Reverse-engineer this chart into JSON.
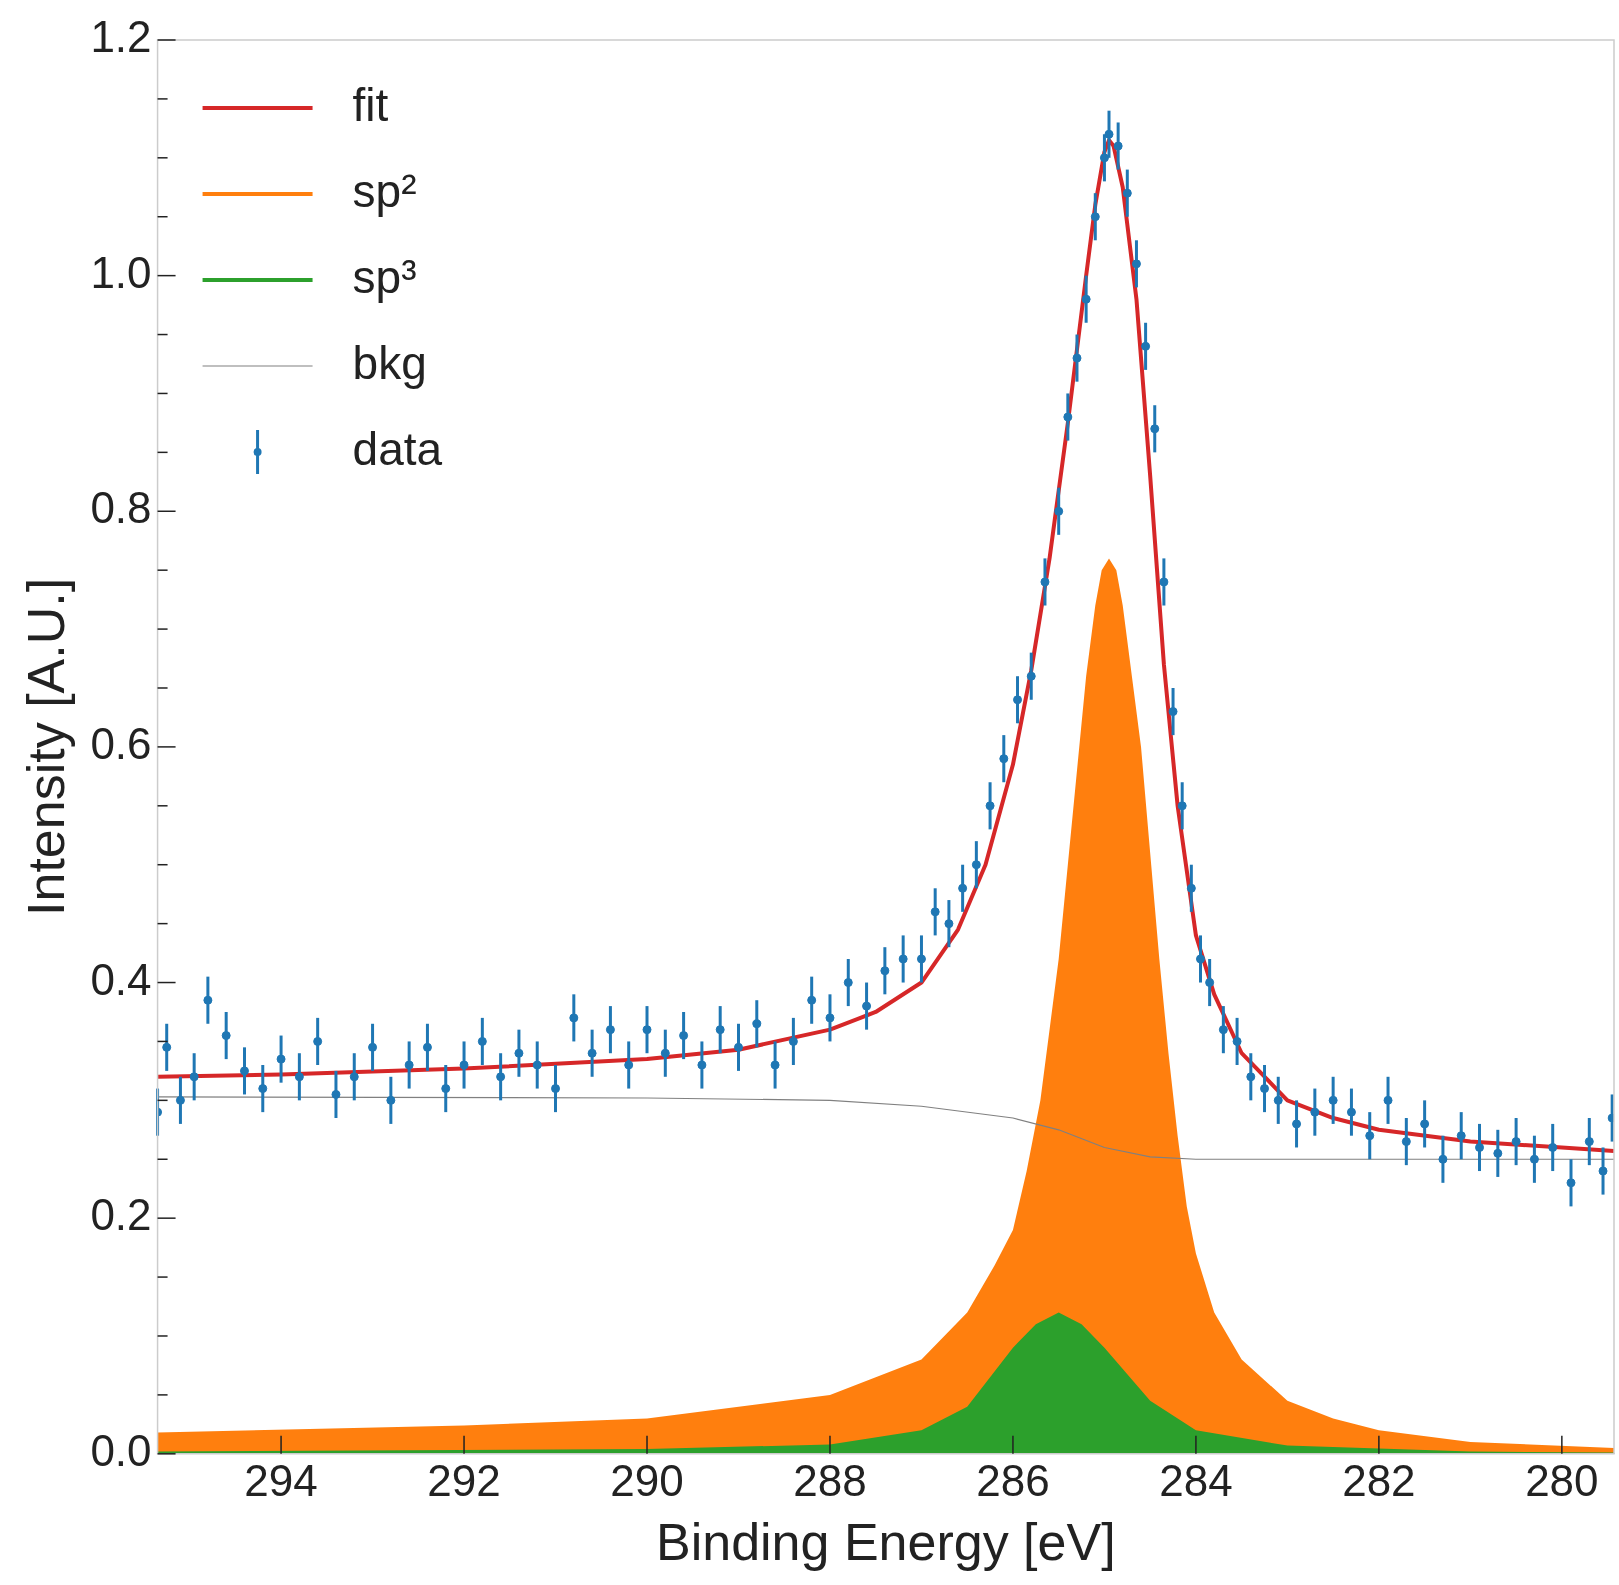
{
  "chart_data": {
    "type": "line",
    "xlabel": "Binding Energy [eV]",
    "ylabel": "Intensity [A.U.]",
    "xlim": [
      295.35,
      279.43
    ],
    "xticks": [
      294,
      292,
      290,
      288,
      286,
      284,
      282,
      280
    ],
    "ylim": [
      0,
      1.2
    ],
    "yticks": [
      {
        "value": 0,
        "label": "0.0"
      },
      {
        "value": 0.05,
        "label": null
      },
      {
        "value": 0.1,
        "label": null
      },
      {
        "value": 0.15,
        "label": null
      },
      0.2,
      {
        "value": 0.25,
        "label": null
      },
      {
        "value": 0.3,
        "label": null
      },
      {
        "value": 0.35,
        "label": null
      },
      0.4,
      {
        "value": 0.45,
        "label": null
      },
      {
        "value": 0.5,
        "label": null
      },
      {
        "value": 0.55,
        "label": null
      },
      0.6,
      {
        "value": 0.65,
        "label": null
      },
      {
        "value": 0.7,
        "label": null
      },
      {
        "value": 0.75,
        "label": null
      },
      0.8,
      {
        "value": 0.85,
        "label": null
      },
      {
        "value": 0.9,
        "label": null
      },
      {
        "value": 0.95,
        "label": null
      },
      {
        "value": 1,
        "label": "1.0"
      },
      {
        "value": 1.05,
        "label": null
      },
      {
        "value": 1.1,
        "label": null
      },
      {
        "value": 1.15,
        "label": null
      },
      1.2
    ],
    "legend": "top left",
    "series": [
      {
        "name": "fit",
        "color": "#d62728",
        "x": [
          295.35,
          294,
          292,
          290,
          289,
          288,
          287.5,
          287,
          286.6,
          286.3,
          286,
          285.8,
          285.6,
          285.4,
          285.2,
          285.1,
          285.0,
          284.95,
          284.9,
          284.8,
          284.65,
          284.5,
          284.35,
          284.2,
          284,
          283.8,
          283.5,
          283,
          282.5,
          282,
          281,
          280,
          279.43
        ],
        "values": [
          0.32,
          0.322,
          0.327,
          0.335,
          0.343,
          0.36,
          0.375,
          0.4,
          0.445,
          0.5,
          0.585,
          0.665,
          0.76,
          0.875,
          1.0,
          1.06,
          1.105,
          1.115,
          1.11,
          1.075,
          0.98,
          0.83,
          0.67,
          0.55,
          0.44,
          0.39,
          0.34,
          0.3,
          0.285,
          0.275,
          0.265,
          0.26,
          0.257
        ]
      },
      {
        "name": "sp²",
        "type": "area",
        "color": "#ff7f0e",
        "x": [
          295.35,
          292,
          290,
          288,
          287,
          286.5,
          286.2,
          286,
          285.85,
          285.7,
          285.6,
          285.5,
          285.4,
          285.3,
          285.2,
          285.1,
          285.03,
          284.95,
          284.87,
          284.8,
          284.7,
          284.6,
          284.5,
          284.4,
          284.3,
          284.2,
          284.1,
          284,
          283.8,
          283.5,
          283,
          282.5,
          282,
          281,
          279.43
        ],
        "values": [
          0.018,
          0.024,
          0.03,
          0.05,
          0.08,
          0.12,
          0.16,
          0.19,
          0.24,
          0.3,
          0.36,
          0.42,
          0.5,
          0.58,
          0.66,
          0.72,
          0.75,
          0.76,
          0.75,
          0.72,
          0.66,
          0.6,
          0.51,
          0.42,
          0.34,
          0.27,
          0.21,
          0.17,
          0.12,
          0.08,
          0.045,
          0.03,
          0.02,
          0.01,
          0.005
        ]
      },
      {
        "name": "sp³",
        "type": "area",
        "color": "#2ca02c",
        "x": [
          295.35,
          290,
          288,
          287,
          286.5,
          286,
          285.75,
          285.5,
          285.25,
          285,
          284.5,
          284,
          283,
          281,
          279.43
        ],
        "values": [
          0.002,
          0.004,
          0.008,
          0.02,
          0.04,
          0.09,
          0.11,
          0.12,
          0.11,
          0.09,
          0.045,
          0.02,
          0.007,
          0.002,
          0.001
        ]
      },
      {
        "name": "bkg",
        "color": "#808080",
        "x": [
          295.35,
          290,
          288,
          287,
          286,
          285.5,
          285,
          284.5,
          284,
          282,
          279.43
        ],
        "values": [
          0.303,
          0.302,
          0.3,
          0.295,
          0.285,
          0.275,
          0.26,
          0.252,
          0.25,
          0.25,
          0.25
        ]
      },
      {
        "name": "data",
        "type": "scatter",
        "color": "#1f77b4",
        "marker": "circle",
        "x": [
          295.35,
          295.25,
          295.1,
          294.95,
          294.8,
          294.6,
          294.4,
          294.2,
          294,
          293.8,
          293.6,
          293.4,
          293.2,
          293,
          292.8,
          292.6,
          292.4,
          292.2,
          292,
          291.8,
          291.6,
          291.4,
          291.2,
          291,
          290.8,
          290.6,
          290.4,
          290.2,
          290,
          289.8,
          289.6,
          289.4,
          289.2,
          289,
          288.8,
          288.6,
          288.4,
          288.2,
          288,
          287.8,
          287.6,
          287.4,
          287.2,
          287,
          286.85,
          286.7,
          286.55,
          286.4,
          286.25,
          286.1,
          285.95,
          285.8,
          285.65,
          285.5,
          285.4,
          285.3,
          285.2,
          285.1,
          285,
          284.95,
          284.85,
          284.75,
          284.65,
          284.55,
          284.45,
          284.35,
          284.25,
          284.15,
          284.05,
          283.95,
          283.85,
          283.7,
          283.55,
          283.4,
          283.25,
          283.1,
          282.9,
          282.7,
          282.5,
          282.3,
          282.1,
          281.9,
          281.7,
          281.5,
          281.3,
          281.1,
          280.9,
          280.7,
          280.5,
          280.3,
          280.1,
          279.9,
          279.7,
          279.55,
          279.45
        ],
        "values": [
          0.29,
          0.345,
          0.3,
          0.32,
          0.385,
          0.355,
          0.325,
          0.31,
          0.335,
          0.32,
          0.35,
          0.305,
          0.32,
          0.345,
          0.3,
          0.33,
          0.345,
          0.31,
          0.33,
          0.35,
          0.32,
          0.34,
          0.33,
          0.31,
          0.37,
          0.34,
          0.36,
          0.33,
          0.36,
          0.34,
          0.355,
          0.33,
          0.36,
          0.345,
          0.365,
          0.33,
          0.35,
          0.385,
          0.37,
          0.4,
          0.38,
          0.41,
          0.42,
          0.42,
          0.46,
          0.45,
          0.48,
          0.5,
          0.55,
          0.59,
          0.64,
          0.66,
          0.74,
          0.8,
          0.88,
          0.93,
          0.98,
          1.05,
          1.1,
          1.12,
          1.11,
          1.07,
          1.01,
          0.94,
          0.87,
          0.74,
          0.63,
          0.55,
          0.48,
          0.42,
          0.4,
          0.36,
          0.35,
          0.32,
          0.31,
          0.3,
          0.28,
          0.29,
          0.3,
          0.29,
          0.27,
          0.3,
          0.265,
          0.28,
          0.25,
          0.27,
          0.26,
          0.255,
          0.265,
          0.25,
          0.26,
          0.23,
          0.265,
          0.24,
          0.285
        ],
        "errors": [
          0.02,
          0.02,
          0.02,
          0.02,
          0.02,
          0.02,
          0.02,
          0.02,
          0.02,
          0.02,
          0.02,
          0.02,
          0.02,
          0.02,
          0.02,
          0.02,
          0.02,
          0.02,
          0.02,
          0.02,
          0.02,
          0.02,
          0.02,
          0.02,
          0.02,
          0.02,
          0.02,
          0.02,
          0.02,
          0.02,
          0.02,
          0.02,
          0.02,
          0.02,
          0.02,
          0.02,
          0.02,
          0.02,
          0.02,
          0.02,
          0.02,
          0.02,
          0.02,
          0.02,
          0.02,
          0.02,
          0.02,
          0.02,
          0.02,
          0.02,
          0.02,
          0.02,
          0.02,
          0.02,
          0.02,
          0.02,
          0.02,
          0.02,
          0.02,
          0.02,
          0.02,
          0.02,
          0.02,
          0.02,
          0.02,
          0.02,
          0.02,
          0.02,
          0.02,
          0.02,
          0.02,
          0.02,
          0.02,
          0.02,
          0.02,
          0.02,
          0.02,
          0.02,
          0.02,
          0.02,
          0.02,
          0.02,
          0.02,
          0.02,
          0.02,
          0.02,
          0.02,
          0.02,
          0.02,
          0.02,
          0.02,
          0.02,
          0.02,
          0.02,
          0.02
        ]
      }
    ]
  }
}
